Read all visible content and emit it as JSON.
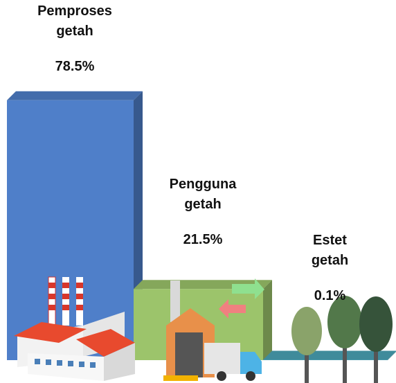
{
  "chart_data": {
    "type": "bar",
    "categories": [
      "Pemproses getah",
      "Pengguna getah",
      "Estet getah"
    ],
    "values": [
      78.5,
      21.5,
      0.1
    ],
    "value_labels": [
      "78.5%",
      "21.5%",
      "0.1%"
    ],
    "colors": [
      "#4f7fc9",
      "#9cc46b",
      "#4aa3b6"
    ],
    "ylim": [
      0,
      100
    ]
  }
}
